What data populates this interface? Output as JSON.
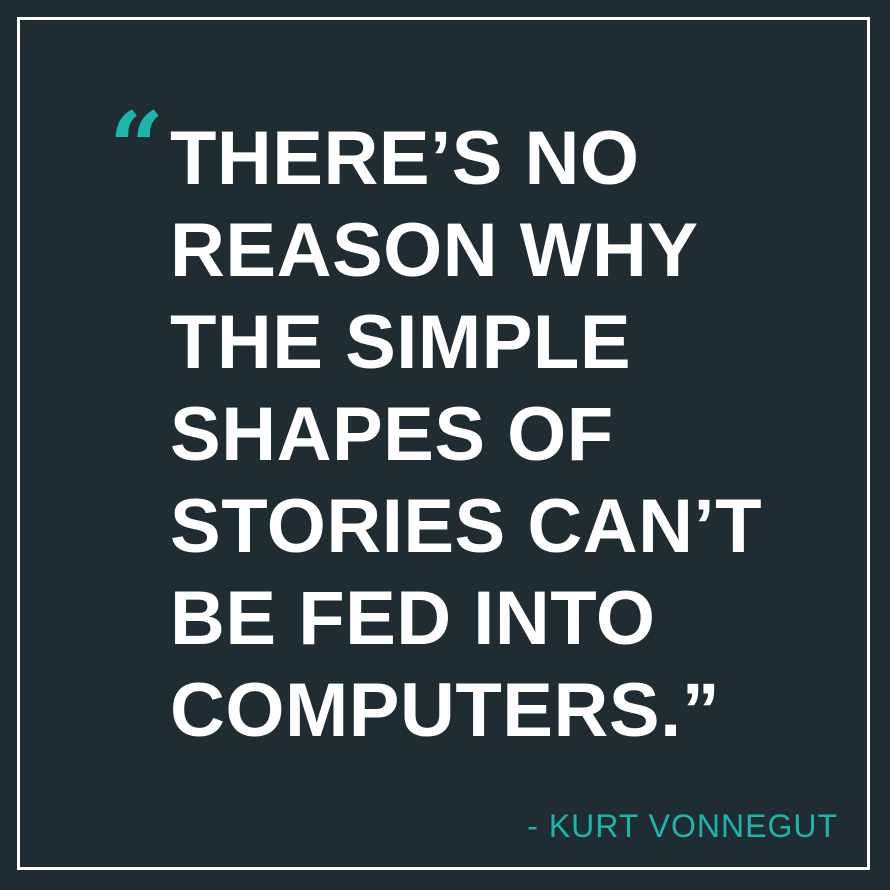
{
  "quote": {
    "open_mark": "“",
    "lines": [
      "THERE’S NO",
      "REASON WHY",
      "THE SIMPLE",
      "SHAPES OF",
      "STORIES CAN’T",
      "BE FED INTO",
      "COMPUTERS.”"
    ],
    "attribution": "- KURT VONNEGUT"
  },
  "colors": {
    "background": "#1f2d33",
    "frame": "#ffffff",
    "text": "#ffffff",
    "accent": "#1bb5ad"
  }
}
